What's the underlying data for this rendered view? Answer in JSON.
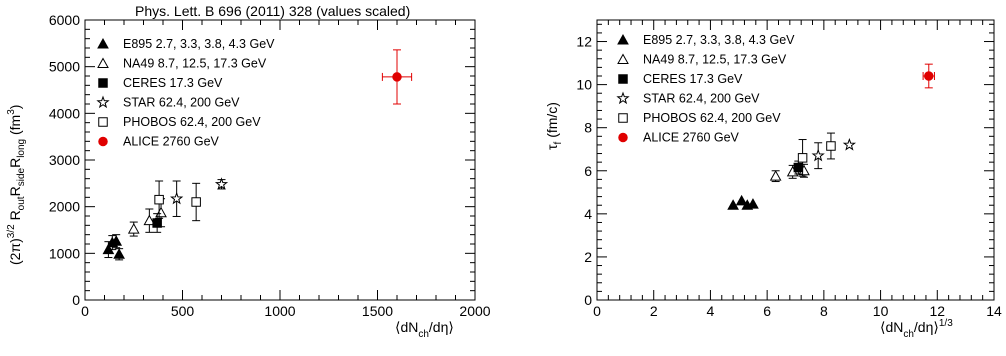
{
  "chart_data": [
    {
      "type": "scatter",
      "title": "Phys. Lett. B 696 (2011) 328 (values scaled)",
      "xlabel": "⟨dN_ch/dη⟩",
      "ylabel": "(2π)^3/2 R_out R_side R_long (fm^3)",
      "xlim": [
        0,
        2000
      ],
      "ylim": [
        0,
        6000
      ],
      "xticks": [
        0,
        500,
        1000,
        1500,
        2000
      ],
      "yticks": [
        0,
        1000,
        2000,
        3000,
        4000,
        5000,
        6000
      ],
      "legend_position": "top-left",
      "series": [
        {
          "name": "E895 2.7, 3.3, 3.8, 4.3 GeV",
          "marker": "filled-triangle",
          "color": "#000000",
          "points": [
            {
              "x": 120,
              "y": 1080,
              "err": 170
            },
            {
              "x": 140,
              "y": 1230,
              "err": 150
            },
            {
              "x": 160,
              "y": 1260,
              "err": 140
            },
            {
              "x": 175,
              "y": 980,
              "err": 120
            }
          ]
        },
        {
          "name": "NA49 8.7, 12.5, 17.3 GeV",
          "marker": "open-triangle",
          "color": "#000000",
          "points": [
            {
              "x": 250,
              "y": 1520,
              "err": 150
            },
            {
              "x": 330,
              "y": 1700,
              "err": 250
            },
            {
              "x": 390,
              "y": 1870,
              "err": 300
            }
          ]
        },
        {
          "name": "CERES 17.3 GeV",
          "marker": "filled-square",
          "color": "#000000",
          "points": [
            {
              "x": 370,
              "y": 1650,
              "err": 200
            }
          ]
        },
        {
          "name": "STAR 62.4, 200 GeV",
          "marker": "open-star",
          "color": "#000000",
          "points": [
            {
              "x": 470,
              "y": 2170,
              "err": 380
            },
            {
              "x": 700,
              "y": 2480,
              "err": 100
            }
          ]
        },
        {
          "name": "PHOBOS 62.4, 200 GeV",
          "marker": "open-square",
          "color": "#000000",
          "points": [
            {
              "x": 380,
              "y": 2150,
              "err": 400
            },
            {
              "x": 570,
              "y": 2100,
              "err": 400
            }
          ]
        },
        {
          "name": "ALICE 2760 GeV",
          "marker": "filled-circle",
          "color": "#e00000",
          "points": [
            {
              "x": 1600,
              "y": 4780,
              "err": 580,
              "xerr": 75
            }
          ]
        }
      ]
    },
    {
      "type": "scatter",
      "title": "",
      "xlabel": "⟨dN_ch/dη⟩^1/3",
      "ylabel": "τ_f (fm/c)",
      "xlim": [
        0,
        14
      ],
      "ylim": [
        0,
        13
      ],
      "xticks": [
        0,
        2,
        4,
        6,
        8,
        10,
        12,
        14
      ],
      "yticks": [
        0,
        2,
        4,
        6,
        8,
        10,
        12
      ],
      "legend_position": "top-left",
      "series": [
        {
          "name": "E895 2.7, 3.3, 3.8, 4.3 GeV",
          "marker": "filled-triangle",
          "color": "#000000",
          "points": [
            {
              "x": 4.8,
              "y": 4.4,
              "err": 0
            },
            {
              "x": 5.1,
              "y": 4.6,
              "err": 0
            },
            {
              "x": 5.3,
              "y": 4.4,
              "err": 0
            },
            {
              "x": 5.5,
              "y": 4.45,
              "err": 0
            }
          ]
        },
        {
          "name": "NA49 8.7, 12.5, 17.3 GeV",
          "marker": "open-triangle",
          "color": "#000000",
          "points": [
            {
              "x": 6.3,
              "y": 5.75,
              "err": 0.25
            },
            {
              "x": 6.9,
              "y": 5.95,
              "err": 0.3
            },
            {
              "x": 7.3,
              "y": 6.0,
              "err": 0.3
            }
          ]
        },
        {
          "name": "CERES 17.3 GeV",
          "marker": "filled-square",
          "color": "#000000",
          "points": [
            {
              "x": 7.1,
              "y": 6.15,
              "err": 0.3
            }
          ]
        },
        {
          "name": "STAR 62.4, 200 GeV",
          "marker": "open-star",
          "color": "#000000",
          "points": [
            {
              "x": 7.8,
              "y": 6.7,
              "err": 0.6
            },
            {
              "x": 8.9,
              "y": 7.2,
              "err": 0
            }
          ]
        },
        {
          "name": "PHOBOS 62.4, 200 GeV",
          "marker": "open-square",
          "color": "#000000",
          "points": [
            {
              "x": 7.25,
              "y": 6.6,
              "err": 0.85
            },
            {
              "x": 8.25,
              "y": 7.15,
              "err": 0.6
            }
          ]
        },
        {
          "name": "ALICE 2760 GeV",
          "marker": "filled-circle",
          "color": "#e00000",
          "points": [
            {
              "x": 11.7,
              "y": 10.4,
              "err": 0.55,
              "xerr": 0.2
            }
          ]
        }
      ]
    }
  ]
}
